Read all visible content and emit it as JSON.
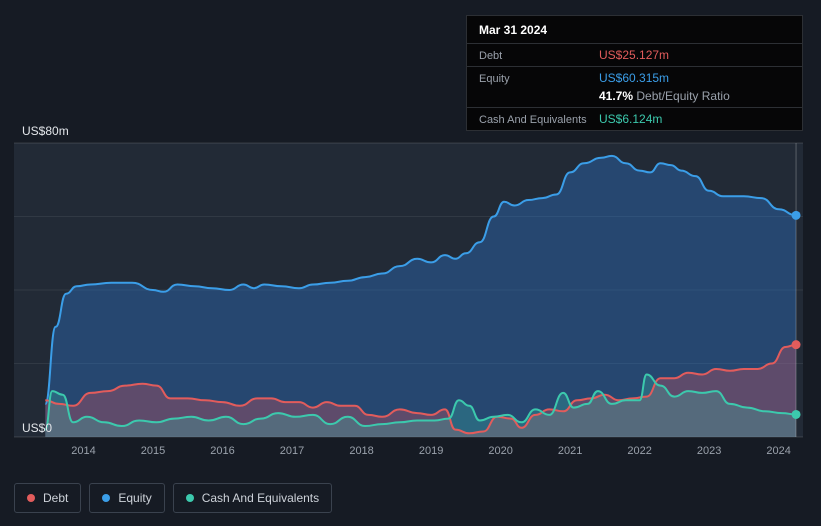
{
  "colors": {
    "background": "#161b24",
    "plot_background": "#222a36",
    "tooltip_background": "#060607",
    "debt": "#e25c5c",
    "equity": "#3b9ee8",
    "cash": "#3cc9ad"
  },
  "tooltip": {
    "date": "Mar 31 2024",
    "debt_label": "Debt",
    "debt_value": "US$25.127m",
    "equity_label": "Equity",
    "equity_value": "US$60.315m",
    "ratio_value": "41.7%",
    "ratio_label": "Debt/Equity Ratio",
    "cash_label": "Cash And Equivalents",
    "cash_value": "US$6.124m"
  },
  "legend": {
    "items": [
      {
        "label": "Debt",
        "color": "#e25c5c"
      },
      {
        "label": "Equity",
        "color": "#3b9ee8"
      },
      {
        "label": "Cash And Equivalents",
        "color": "#3cc9ad"
      }
    ]
  },
  "chart_data": {
    "type": "area",
    "ylabel_top": "US$80m",
    "ylabel_bottom": "US$0",
    "xlim": [
      2013.0,
      2024.35
    ],
    "ylim": [
      0,
      80
    ],
    "grid": true,
    "grid_values": [
      0,
      20,
      40,
      60,
      80
    ],
    "x_ticks": [
      2014,
      2015,
      2016,
      2017,
      2018,
      2019,
      2020,
      2021,
      2022,
      2023,
      2024
    ],
    "legend_position": "bottom-left",
    "series": [
      {
        "name": "Equity",
        "color": "#3b9ee8",
        "fill": "rgba(45,125,220,0.35)",
        "x": [
          2013.45,
          2013.6,
          2013.75,
          2013.9,
          2014.1,
          2014.4,
          2014.7,
          2015.0,
          2015.15,
          2015.35,
          2015.6,
          2015.85,
          2016.1,
          2016.3,
          2016.45,
          2016.6,
          2016.85,
          2017.1,
          2017.3,
          2017.55,
          2017.8,
          2018.05,
          2018.3,
          2018.55,
          2018.8,
          2019.0,
          2019.2,
          2019.35,
          2019.5,
          2019.7,
          2019.9,
          2020.05,
          2020.2,
          2020.4,
          2020.6,
          2020.8,
          2021.0,
          2021.2,
          2021.45,
          2021.6,
          2021.8,
          2022.0,
          2022.15,
          2022.3,
          2022.45,
          2022.6,
          2022.8,
          2023.0,
          2023.2,
          2023.5,
          2023.75,
          2024.0,
          2024.25
        ],
        "y": [
          9,
          30,
          39,
          41,
          41.5,
          42,
          42,
          40,
          39.5,
          41.5,
          41,
          40.5,
          40,
          41.5,
          40.5,
          41.5,
          41,
          40.5,
          41.5,
          42,
          42.5,
          43.5,
          44.5,
          46.5,
          48.5,
          47.5,
          49.5,
          48.5,
          50,
          53,
          60,
          64,
          63,
          64.5,
          65,
          66,
          72,
          74.5,
          76,
          76.5,
          74.5,
          72.5,
          72,
          74.5,
          74,
          72.5,
          71,
          67,
          65.5,
          65.5,
          65,
          62,
          60.315
        ]
      },
      {
        "name": "Debt",
        "color": "#e25c5c",
        "fill": "rgba(226,85,95,0.30)",
        "x": [
          2013.45,
          2013.65,
          2013.85,
          2014.1,
          2014.35,
          2014.6,
          2014.85,
          2015.05,
          2015.25,
          2015.5,
          2015.75,
          2016.0,
          2016.25,
          2016.5,
          2016.7,
          2016.9,
          2017.1,
          2017.3,
          2017.5,
          2017.7,
          2017.9,
          2018.1,
          2018.3,
          2018.55,
          2018.8,
          2019.0,
          2019.2,
          2019.35,
          2019.55,
          2019.75,
          2019.95,
          2020.15,
          2020.3,
          2020.5,
          2020.7,
          2020.9,
          2021.1,
          2021.3,
          2021.5,
          2021.7,
          2021.9,
          2022.1,
          2022.3,
          2022.5,
          2022.7,
          2022.9,
          2023.1,
          2023.3,
          2023.5,
          2023.7,
          2023.9,
          2024.1,
          2024.25
        ],
        "y": [
          10,
          9,
          8.5,
          12,
          12.5,
          14,
          14.5,
          14,
          10.5,
          10.5,
          10,
          9.5,
          8.5,
          10.5,
          10.5,
          9.5,
          9.5,
          8,
          9.5,
          8.5,
          8.5,
          6,
          5.5,
          7.5,
          6.5,
          6,
          7.5,
          2,
          1,
          1.5,
          5.5,
          5,
          2.5,
          6,
          7.5,
          7,
          10,
          10.5,
          11.5,
          10,
          10.5,
          11,
          16,
          16,
          17.5,
          17,
          18.5,
          18,
          18.5,
          18.5,
          20,
          24.5,
          25.127
        ]
      },
      {
        "name": "Cash And Equivalents",
        "color": "#3cc9ad",
        "fill": "rgba(60,201,175,0.25)",
        "x": [
          2013.45,
          2013.55,
          2013.7,
          2013.85,
          2014.05,
          2014.3,
          2014.55,
          2014.8,
          2015.05,
          2015.3,
          2015.55,
          2015.8,
          2016.05,
          2016.3,
          2016.55,
          2016.8,
          2017.05,
          2017.3,
          2017.55,
          2017.8,
          2018.05,
          2018.3,
          2018.55,
          2018.8,
          2019.05,
          2019.25,
          2019.4,
          2019.55,
          2019.7,
          2019.9,
          2020.1,
          2020.3,
          2020.5,
          2020.7,
          2020.9,
          2021.05,
          2021.25,
          2021.4,
          2021.6,
          2021.8,
          2022.0,
          2022.1,
          2022.3,
          2022.5,
          2022.7,
          2022.9,
          2023.1,
          2023.3,
          2023.55,
          2023.8,
          2024.05,
          2024.25
        ],
        "y": [
          2,
          12.5,
          11.5,
          4,
          5.5,
          4,
          3,
          4.5,
          4,
          5,
          5.5,
          4.5,
          5.5,
          3.5,
          5,
          6.5,
          5.5,
          6,
          3.5,
          5.5,
          3,
          3.5,
          4,
          4.5,
          4.5,
          5,
          10,
          8.5,
          4.5,
          5.5,
          6,
          4,
          7.5,
          6,
          12,
          8,
          9,
          12.5,
          9,
          10,
          10,
          17,
          14,
          11,
          12.5,
          12,
          12.5,
          9,
          8,
          7,
          6.5,
          6.124
        ]
      }
    ]
  }
}
